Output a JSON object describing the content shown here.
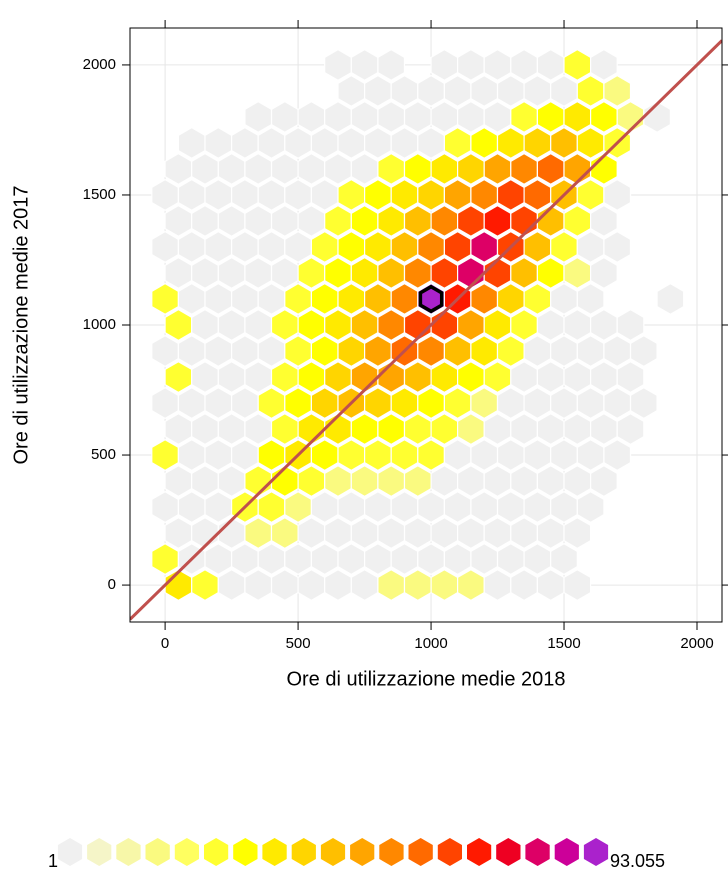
{
  "chart_data": {
    "type": "hexbin",
    "xlabel": "Ore di utilizzazione medie 2018",
    "ylabel": "Ore di utilizzazione medie 2017",
    "xlim": [
      -132,
      2094
    ],
    "ylim": [
      -142,
      2142
    ],
    "xticks": [
      0,
      500,
      1000,
      1500,
      2000
    ],
    "yticks": [
      0,
      500,
      1000,
      1500,
      2000
    ],
    "grid": true,
    "diagonal_color": "#c0504d",
    "hex_size": 100,
    "color_log": true,
    "colorscale": [
      "#f0f0f0",
      "#f5f5c8",
      "#f7f7a8",
      "#fafa80",
      "#ffff60",
      "#ffff30",
      "#ffff00",
      "#ffea00",
      "#ffd500",
      "#ffbf00",
      "#ffa500",
      "#ff8800",
      "#ff6a00",
      "#ff4400",
      "#ff1a00",
      "#ee0022",
      "#dd0066",
      "#cc0099",
      "#aa22cc"
    ],
    "colorbar_ticks": [
      1,
      {
        "value": 93055,
        "label": "93.055"
      }
    ],
    "rows": [
      {
        "y": 0,
        "x": [
          50,
          150,
          250,
          350,
          450,
          550,
          650,
          750,
          850,
          950,
          1050,
          1150,
          1250,
          1350,
          1450,
          1550
        ],
        "counts": [
          100,
          20,
          1,
          1,
          1,
          1,
          1,
          1,
          5,
          5,
          5,
          5,
          1,
          1,
          1,
          1
        ]
      },
      {
        "y": 100,
        "x": [
          0,
          100,
          200,
          300,
          400,
          500,
          600,
          700,
          800,
          900,
          1000,
          1100,
          1200,
          1300,
          1400,
          1500
        ],
        "counts": [
          20,
          1,
          1,
          1,
          1,
          1,
          1,
          1,
          1,
          1,
          1,
          1,
          1,
          1,
          1,
          1
        ]
      },
      {
        "y": 200,
        "x": [
          50,
          150,
          250,
          350,
          450,
          550,
          650,
          750,
          850,
          950,
          1050,
          1150,
          1250,
          1350,
          1450,
          1550
        ],
        "counts": [
          1,
          1,
          1,
          5,
          5,
          1,
          1,
          1,
          1,
          1,
          1,
          1,
          1,
          1,
          1,
          1
        ]
      },
      {
        "y": 300,
        "x": [
          0,
          100,
          200,
          300,
          400,
          500,
          600,
          700,
          800,
          900,
          1000,
          1100,
          1200,
          1300,
          1400,
          1500,
          1600
        ],
        "counts": [
          1,
          1,
          1,
          20,
          20,
          5,
          1,
          1,
          1,
          1,
          1,
          1,
          1,
          1,
          1,
          1,
          1
        ]
      },
      {
        "y": 400,
        "x": [
          50,
          150,
          250,
          350,
          450,
          550,
          650,
          750,
          850,
          950,
          1050,
          1150,
          1250,
          1350,
          1450,
          1550,
          1650
        ],
        "counts": [
          1,
          1,
          1,
          20,
          50,
          20,
          5,
          5,
          5,
          5,
          1,
          1,
          1,
          1,
          1,
          1,
          1
        ]
      },
      {
        "y": 500,
        "x": [
          0,
          100,
          200,
          300,
          400,
          500,
          600,
          700,
          800,
          900,
          1000,
          1100,
          1200,
          1300,
          1400,
          1500,
          1600,
          1700
        ],
        "counts": [
          20,
          1,
          1,
          1,
          50,
          100,
          50,
          20,
          20,
          20,
          20,
          1,
          1,
          1,
          1,
          1,
          1,
          1
        ]
      },
      {
        "y": 600,
        "x": [
          50,
          150,
          250,
          350,
          450,
          550,
          650,
          750,
          850,
          950,
          1050,
          1150,
          1250,
          1350,
          1450,
          1550,
          1650,
          1750
        ],
        "counts": [
          1,
          1,
          1,
          1,
          20,
          100,
          100,
          50,
          50,
          20,
          20,
          5,
          1,
          1,
          1,
          1,
          1,
          1
        ]
      },
      {
        "y": 700,
        "x": [
          0,
          100,
          200,
          300,
          400,
          500,
          600,
          700,
          800,
          900,
          1000,
          1100,
          1200,
          1300,
          1400,
          1500,
          1600,
          1700,
          1800
        ],
        "counts": [
          1,
          1,
          1,
          1,
          20,
          50,
          200,
          300,
          200,
          100,
          50,
          20,
          5,
          1,
          1,
          1,
          1,
          1,
          1
        ]
      },
      {
        "y": 800,
        "x": [
          50,
          150,
          250,
          350,
          450,
          550,
          650,
          750,
          850,
          950,
          1050,
          1150,
          1250,
          1350,
          1450,
          1550,
          1650,
          1750
        ],
        "counts": [
          20,
          1,
          1,
          1,
          20,
          50,
          200,
          500,
          500,
          300,
          100,
          50,
          20,
          1,
          1,
          1,
          1,
          1
        ]
      },
      {
        "y": 900,
        "x": [
          0,
          100,
          200,
          300,
          400,
          500,
          600,
          700,
          800,
          900,
          1000,
          1100,
          1200,
          1300,
          1400,
          1500,
          1600,
          1700,
          1800
        ],
        "counts": [
          1,
          1,
          1,
          1,
          1,
          20,
          50,
          200,
          500,
          2000,
          1000,
          300,
          100,
          20,
          1,
          1,
          1,
          1,
          1
        ]
      },
      {
        "y": 1000,
        "x": [
          50,
          150,
          250,
          350,
          450,
          550,
          650,
          750,
          850,
          950,
          1050,
          1150,
          1250,
          1350,
          1450,
          1550,
          1650,
          1750
        ],
        "counts": [
          20,
          1,
          1,
          1,
          20,
          50,
          100,
          300,
          1000,
          5000,
          3000,
          500,
          100,
          20,
          1,
          1,
          1,
          1
        ]
      },
      {
        "y": 1100,
        "x": [
          0,
          100,
          200,
          300,
          400,
          500,
          600,
          700,
          800,
          900,
          1000,
          1100,
          1200,
          1300,
          1400,
          1500,
          1600,
          1900
        ],
        "counts": [
          20,
          1,
          1,
          1,
          1,
          20,
          50,
          100,
          300,
          1000,
          93055,
          10000,
          1000,
          200,
          20,
          1,
          1,
          1
        ]
      },
      {
        "y": 1200,
        "x": [
          50,
          150,
          250,
          350,
          450,
          550,
          650,
          750,
          850,
          950,
          1050,
          1150,
          1250,
          1350,
          1450,
          1550,
          1650
        ],
        "counts": [
          1,
          1,
          1,
          1,
          1,
          20,
          50,
          100,
          300,
          1000,
          3000,
          20000,
          3000,
          300,
          50,
          5,
          1
        ]
      },
      {
        "y": 1300,
        "x": [
          0,
          100,
          200,
          300,
          400,
          500,
          600,
          700,
          800,
          900,
          1000,
          1100,
          1200,
          1300,
          1400,
          1500,
          1600,
          1700
        ],
        "counts": [
          1,
          1,
          1,
          1,
          1,
          1,
          20,
          50,
          100,
          300,
          1000,
          5000,
          20000,
          5000,
          300,
          20,
          1,
          1
        ]
      },
      {
        "y": 1400,
        "x": [
          50,
          150,
          250,
          350,
          450,
          550,
          650,
          750,
          850,
          950,
          1050,
          1150,
          1250,
          1350,
          1450,
          1550,
          1650
        ],
        "counts": [
          1,
          1,
          1,
          1,
          1,
          1,
          20,
          50,
          100,
          300,
          1000,
          3000,
          10000,
          3000,
          300,
          20,
          1
        ]
      },
      {
        "y": 1500,
        "x": [
          0,
          100,
          200,
          300,
          400,
          500,
          600,
          700,
          800,
          900,
          1000,
          1100,
          1200,
          1300,
          1400,
          1500,
          1600,
          1700
        ],
        "counts": [
          1,
          1,
          1,
          1,
          1,
          1,
          1,
          20,
          50,
          100,
          200,
          500,
          1000,
          5000,
          2000,
          300,
          20,
          1
        ]
      },
      {
        "y": 1600,
        "x": [
          50,
          150,
          250,
          350,
          450,
          550,
          650,
          750,
          850,
          950,
          1050,
          1150,
          1250,
          1350,
          1450,
          1550,
          1650
        ],
        "counts": [
          1,
          1,
          1,
          1,
          1,
          1,
          1,
          1,
          20,
          50,
          100,
          200,
          500,
          1000,
          2000,
          500,
          50
        ]
      },
      {
        "y": 1700,
        "x": [
          100,
          200,
          300,
          400,
          500,
          600,
          700,
          800,
          900,
          1000,
          1100,
          1200,
          1300,
          1400,
          1500,
          1600,
          1700
        ],
        "counts": [
          1,
          1,
          1,
          1,
          1,
          1,
          1,
          1,
          1,
          1,
          20,
          50,
          100,
          200,
          300,
          100,
          20
        ]
      },
      {
        "y": 1800,
        "x": [
          350,
          450,
          550,
          650,
          750,
          850,
          950,
          1050,
          1150,
          1250,
          1350,
          1450,
          1550,
          1650,
          1750,
          1850
        ],
        "counts": [
          1,
          1,
          1,
          1,
          1,
          1,
          1,
          1,
          1,
          1,
          20,
          50,
          100,
          50,
          5,
          1
        ]
      },
      {
        "y": 1900,
        "x": [
          700,
          800,
          900,
          1000,
          1100,
          1200,
          1300,
          1400,
          1500,
          1600,
          1700
        ],
        "counts": [
          1,
          1,
          1,
          1,
          1,
          1,
          1,
          1,
          1,
          20,
          5
        ]
      },
      {
        "y": 2000,
        "x": [
          650,
          750,
          850,
          1050,
          1150,
          1250,
          1350,
          1450,
          1550,
          1650
        ],
        "counts": [
          1,
          1,
          1,
          1,
          1,
          1,
          1,
          1,
          20,
          1
        ]
      }
    ]
  }
}
